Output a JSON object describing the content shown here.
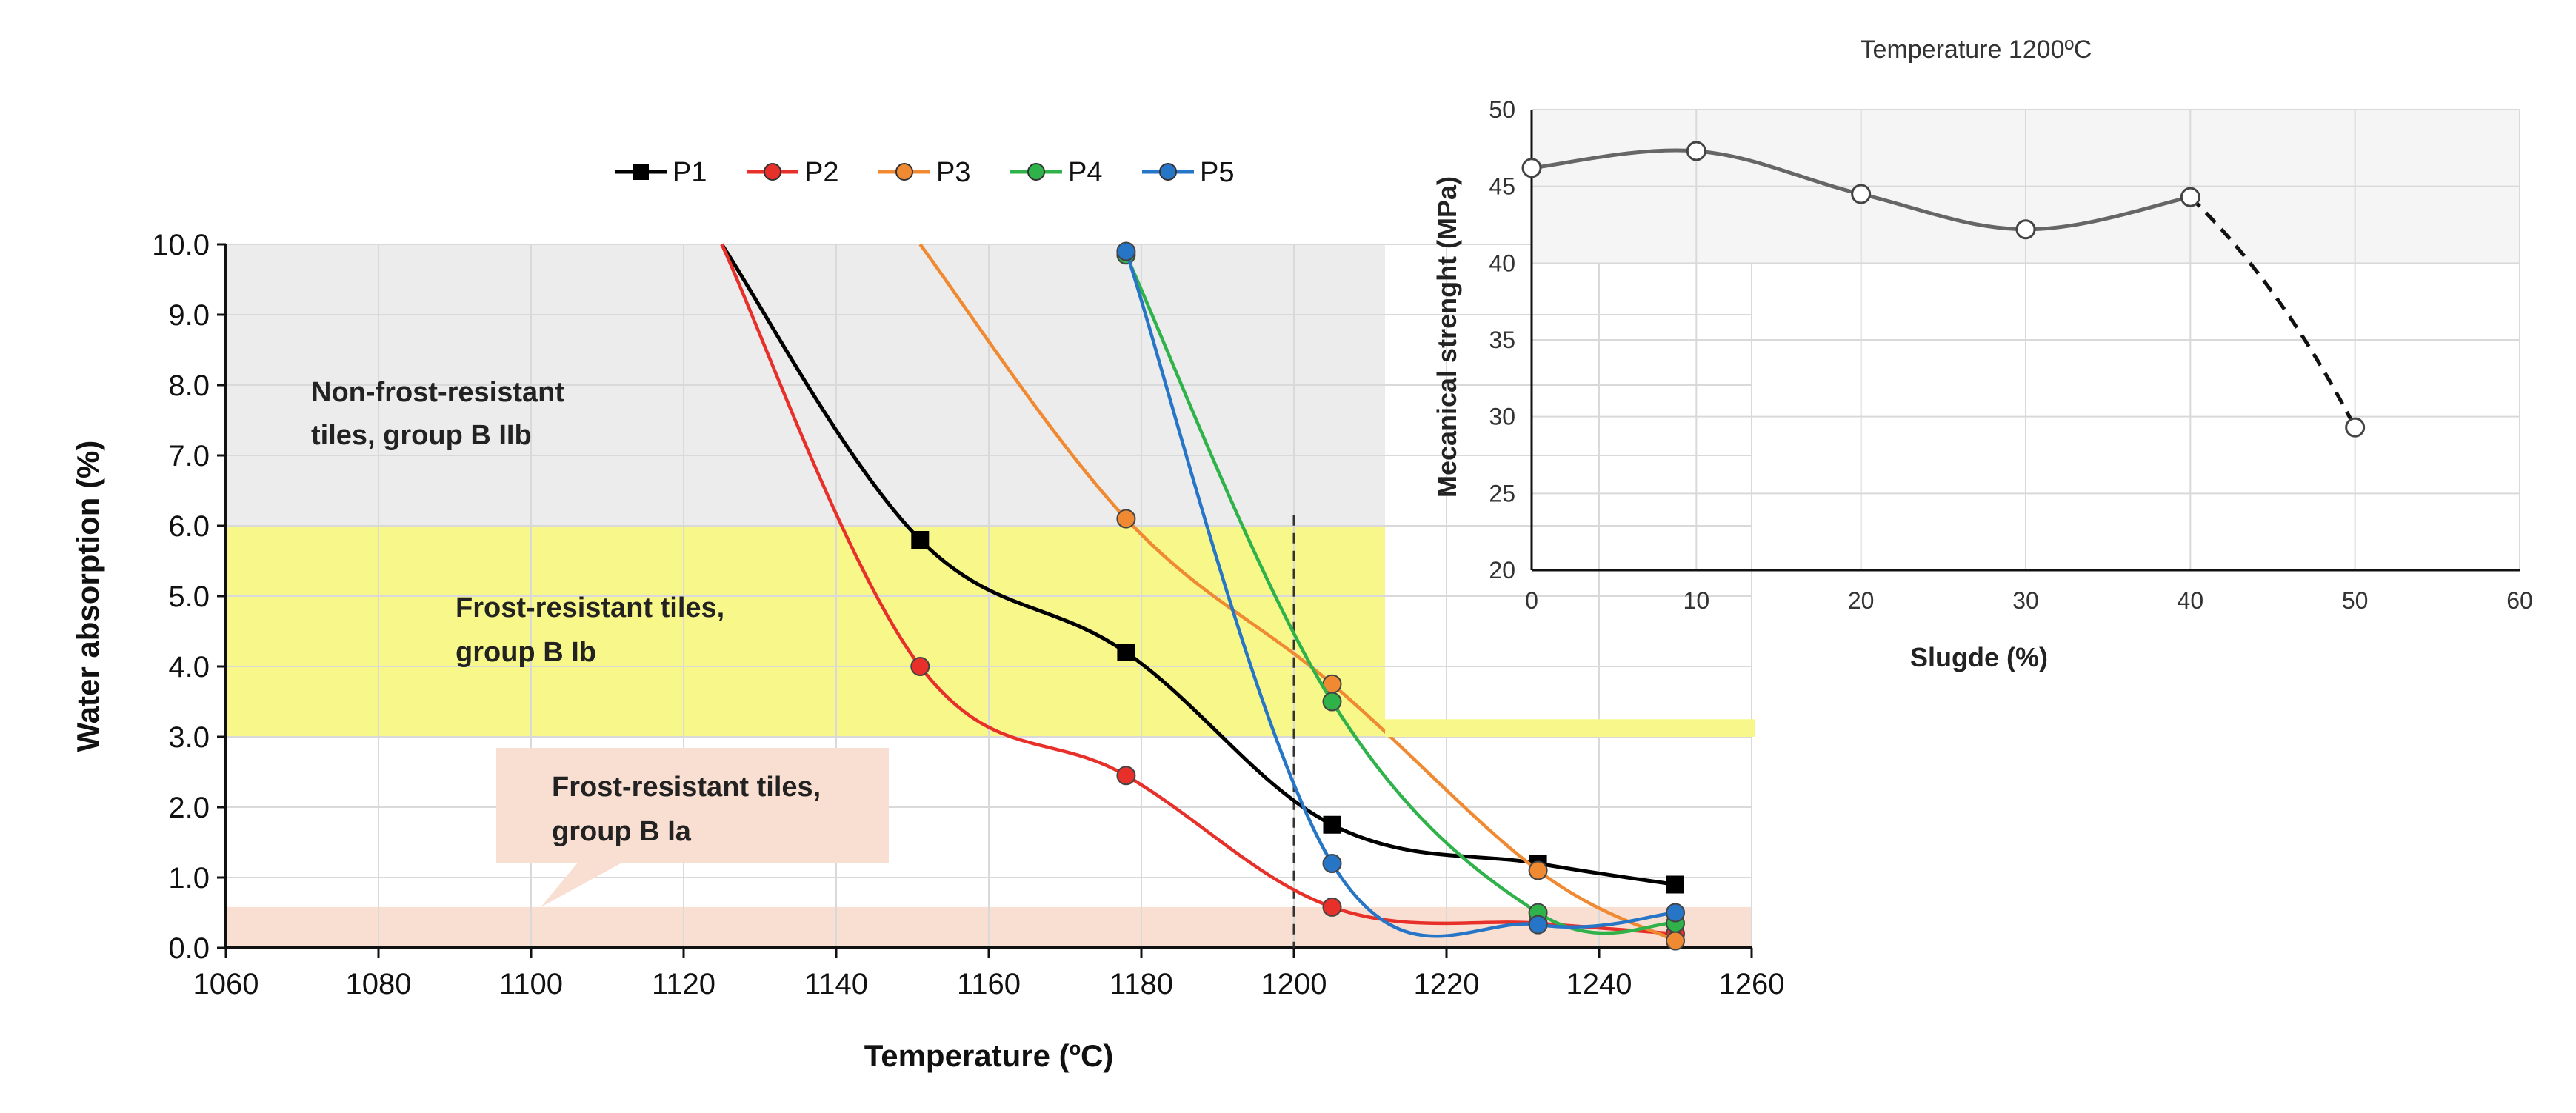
{
  "colors": {
    "p1": "#000000",
    "p2": "#e8302a",
    "p3": "#f08a32",
    "p4": "#2fb24a",
    "p5": "#2775c6",
    "zone_nonfrost": "#ececec",
    "zone_frost_b_ib": "#f8f88a",
    "zone_frost_b_ia": "#f9dfd2",
    "grid": "#d9d9d9",
    "right_line": "#666666",
    "right_bg": "#f5f5f5"
  },
  "chart_data": [
    {
      "type": "line",
      "title": "",
      "xlabel": "Temperature   (ºC)",
      "ylabel": "Water absorption   (%)",
      "xlim": [
        1060,
        1260
      ],
      "ylim": [
        0,
        10
      ],
      "xticks": [
        "1060",
        "1080",
        "1100",
        "1120",
        "1140",
        "1160",
        "1180",
        "1200",
        "1220",
        "1240",
        "1260"
      ],
      "yticks": [
        "0.0",
        "1.0",
        "2.0",
        "3.0",
        "4.0",
        "5.0",
        "6.0",
        "7.0",
        "8.0",
        "9.0",
        "10.0"
      ],
      "grid": true,
      "legend": "top-center",
      "reference_line_x": 1200,
      "zones": [
        {
          "label_line1": "Non-frost-resistant",
          "label_line2": "tiles, group B IIb",
          "y_range": [
            6,
            10
          ]
        },
        {
          "label_line1": "Frost-resistant tiles,",
          "label_line2": "group B Ib",
          "y_range": [
            3,
            6
          ]
        },
        {
          "label_line1": "Frost-resistant tiles,",
          "label_line2": "group B Ia",
          "y_range": [
            0,
            0.5
          ]
        }
      ],
      "series": [
        {
          "name": "P1",
          "marker": "square",
          "x": [
            1125,
            1151,
            1178,
            1205,
            1232,
            1250
          ],
          "y": [
            10.0,
            5.8,
            4.2,
            1.75,
            1.2,
            0.9
          ]
        },
        {
          "name": "P2",
          "marker": "circle",
          "x": [
            1125,
            1151,
            1178,
            1205,
            1232,
            1250
          ],
          "y": [
            10.0,
            4.0,
            2.45,
            0.58,
            0.35,
            0.2
          ]
        },
        {
          "name": "P3",
          "marker": "circle",
          "x": [
            1151,
            1178,
            1205,
            1232,
            1250
          ],
          "y": [
            10.0,
            6.1,
            3.75,
            1.1,
            0.1
          ]
        },
        {
          "name": "P4",
          "marker": "circle",
          "x": [
            1178,
            1205,
            1232,
            1250
          ],
          "y": [
            9.85,
            3.5,
            0.5,
            0.35
          ]
        },
        {
          "name": "P5",
          "marker": "circle",
          "x": [
            1178,
            1205,
            1232,
            1250
          ],
          "y": [
            9.9,
            1.2,
            0.33,
            0.5
          ]
        }
      ]
    },
    {
      "type": "line",
      "title": "Temperature 1200ºC",
      "xlabel": "Slugde   (%)",
      "ylabel": "Mecanical strenght   (MPa)",
      "xlim": [
        0,
        60
      ],
      "ylim": [
        20,
        50
      ],
      "xticks": [
        "0",
        "10",
        "20",
        "30",
        "40",
        "50",
        "60"
      ],
      "yticks": [
        "20",
        "25",
        "30",
        "35",
        "40",
        "45",
        "50"
      ],
      "grid": true,
      "series": [
        {
          "name": "Mechanical strength",
          "marker": "open-circle",
          "x": [
            0,
            10,
            20,
            30,
            40,
            50
          ],
          "y": [
            46.2,
            47.3,
            44.5,
            42.2,
            44.3,
            29.3
          ],
          "dashed_from_x": 40
        }
      ]
    }
  ]
}
